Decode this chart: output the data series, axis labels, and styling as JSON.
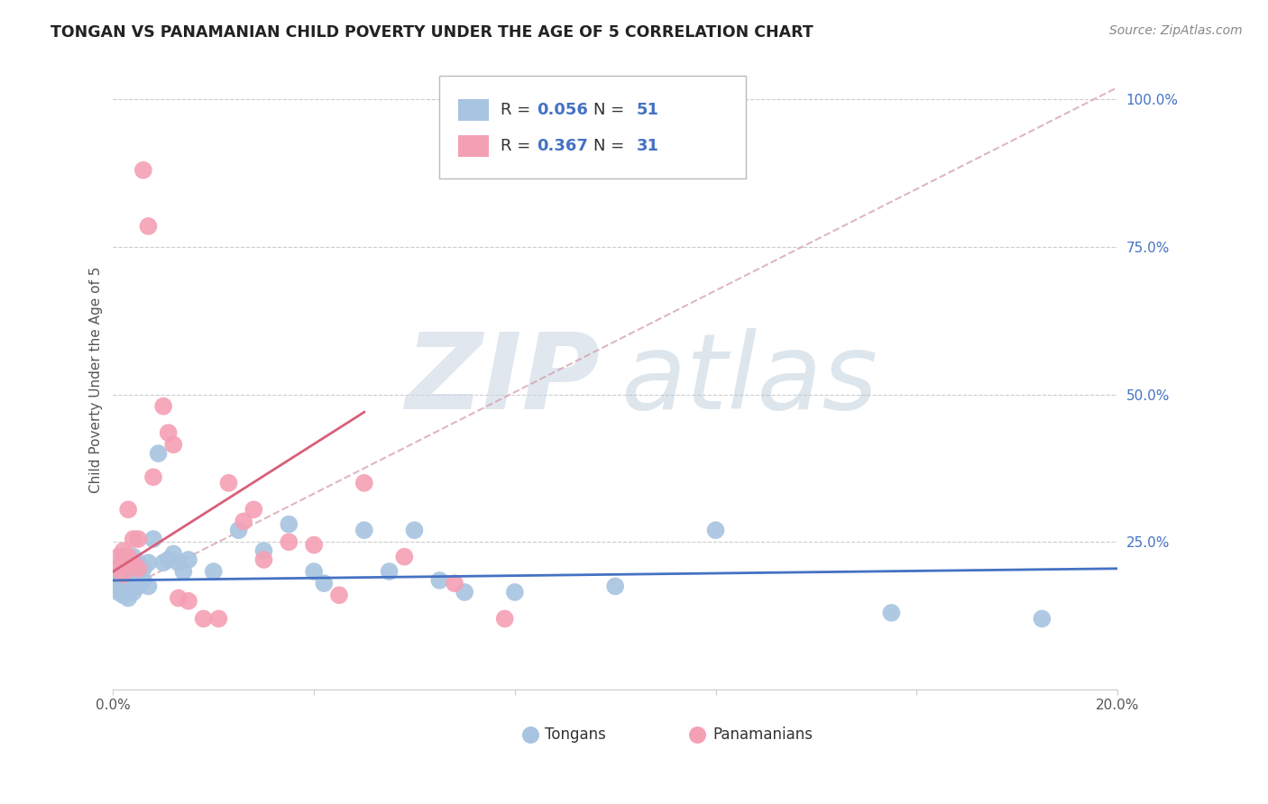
{
  "title": "TONGAN VS PANAMANIAN CHILD POVERTY UNDER THE AGE OF 5 CORRELATION CHART",
  "source": "Source: ZipAtlas.com",
  "ylabel": "Child Poverty Under the Age of 5",
  "xlim": [
    0.0,
    0.2
  ],
  "ylim": [
    0.0,
    1.05
  ],
  "xticks": [
    0.0,
    0.04,
    0.08,
    0.12,
    0.16,
    0.2
  ],
  "xtick_labels": [
    "0.0%",
    "",
    "",
    "",
    "",
    "20.0%"
  ],
  "yticks_right": [
    0.0,
    0.25,
    0.5,
    0.75,
    1.0
  ],
  "ytick_labels_right": [
    "",
    "25.0%",
    "50.0%",
    "75.0%",
    "100.0%"
  ],
  "tongans_R": "0.056",
  "tongans_N": "51",
  "panamanians_R": "0.367",
  "panamanians_N": "31",
  "tongans_color": "#a8c4e0",
  "panamanians_color": "#f4a0b4",
  "trendline_tongans_color": "#4472c4",
  "trendline_panamanians_color": "#d95f7a",
  "diagonal_color": "#d4a0a8",
  "grid_color": "#cccccc",
  "title_color": "#222222",
  "label_color": "#555555",
  "right_axis_color": "#4472c4",
  "legend_value_color": "#4472c4",
  "tongans_trendline": [
    0.0,
    0.2,
    0.185,
    0.205
  ],
  "panamanians_trendline": [
    0.0,
    0.05,
    0.2,
    0.47
  ],
  "diagonal_line": [
    0.0,
    0.2,
    0.16,
    1.02
  ],
  "tongans_x": [
    0.001,
    0.001,
    0.001,
    0.001,
    0.002,
    0.002,
    0.002,
    0.002,
    0.002,
    0.003,
    0.003,
    0.003,
    0.003,
    0.003,
    0.003,
    0.004,
    0.004,
    0.004,
    0.004,
    0.004,
    0.005,
    0.005,
    0.005,
    0.006,
    0.006,
    0.007,
    0.007,
    0.008,
    0.009,
    0.01,
    0.011,
    0.012,
    0.013,
    0.014,
    0.015,
    0.02,
    0.025,
    0.03,
    0.035,
    0.04,
    0.042,
    0.05,
    0.055,
    0.06,
    0.065,
    0.07,
    0.08,
    0.1,
    0.12,
    0.155,
    0.185
  ],
  "tongans_y": [
    0.195,
    0.185,
    0.175,
    0.165,
    0.225,
    0.205,
    0.19,
    0.175,
    0.16,
    0.215,
    0.205,
    0.195,
    0.185,
    0.175,
    0.155,
    0.225,
    0.21,
    0.195,
    0.18,
    0.165,
    0.215,
    0.2,
    0.175,
    0.205,
    0.185,
    0.215,
    0.175,
    0.255,
    0.4,
    0.215,
    0.22,
    0.23,
    0.215,
    0.2,
    0.22,
    0.2,
    0.27,
    0.235,
    0.28,
    0.2,
    0.18,
    0.27,
    0.2,
    0.27,
    0.185,
    0.165,
    0.165,
    0.175,
    0.27,
    0.13,
    0.12
  ],
  "panamanians_x": [
    0.001,
    0.001,
    0.002,
    0.002,
    0.003,
    0.003,
    0.004,
    0.004,
    0.005,
    0.005,
    0.006,
    0.007,
    0.008,
    0.01,
    0.011,
    0.012,
    0.013,
    0.015,
    0.018,
    0.021,
    0.023,
    0.026,
    0.028,
    0.03,
    0.035,
    0.04,
    0.045,
    0.05,
    0.058,
    0.068,
    0.078
  ],
  "panamanians_y": [
    0.225,
    0.205,
    0.235,
    0.195,
    0.225,
    0.305,
    0.215,
    0.255,
    0.255,
    0.205,
    0.88,
    0.785,
    0.36,
    0.48,
    0.435,
    0.415,
    0.155,
    0.15,
    0.12,
    0.12,
    0.35,
    0.285,
    0.305,
    0.22,
    0.25,
    0.245,
    0.16,
    0.35,
    0.225,
    0.18,
    0.12
  ]
}
